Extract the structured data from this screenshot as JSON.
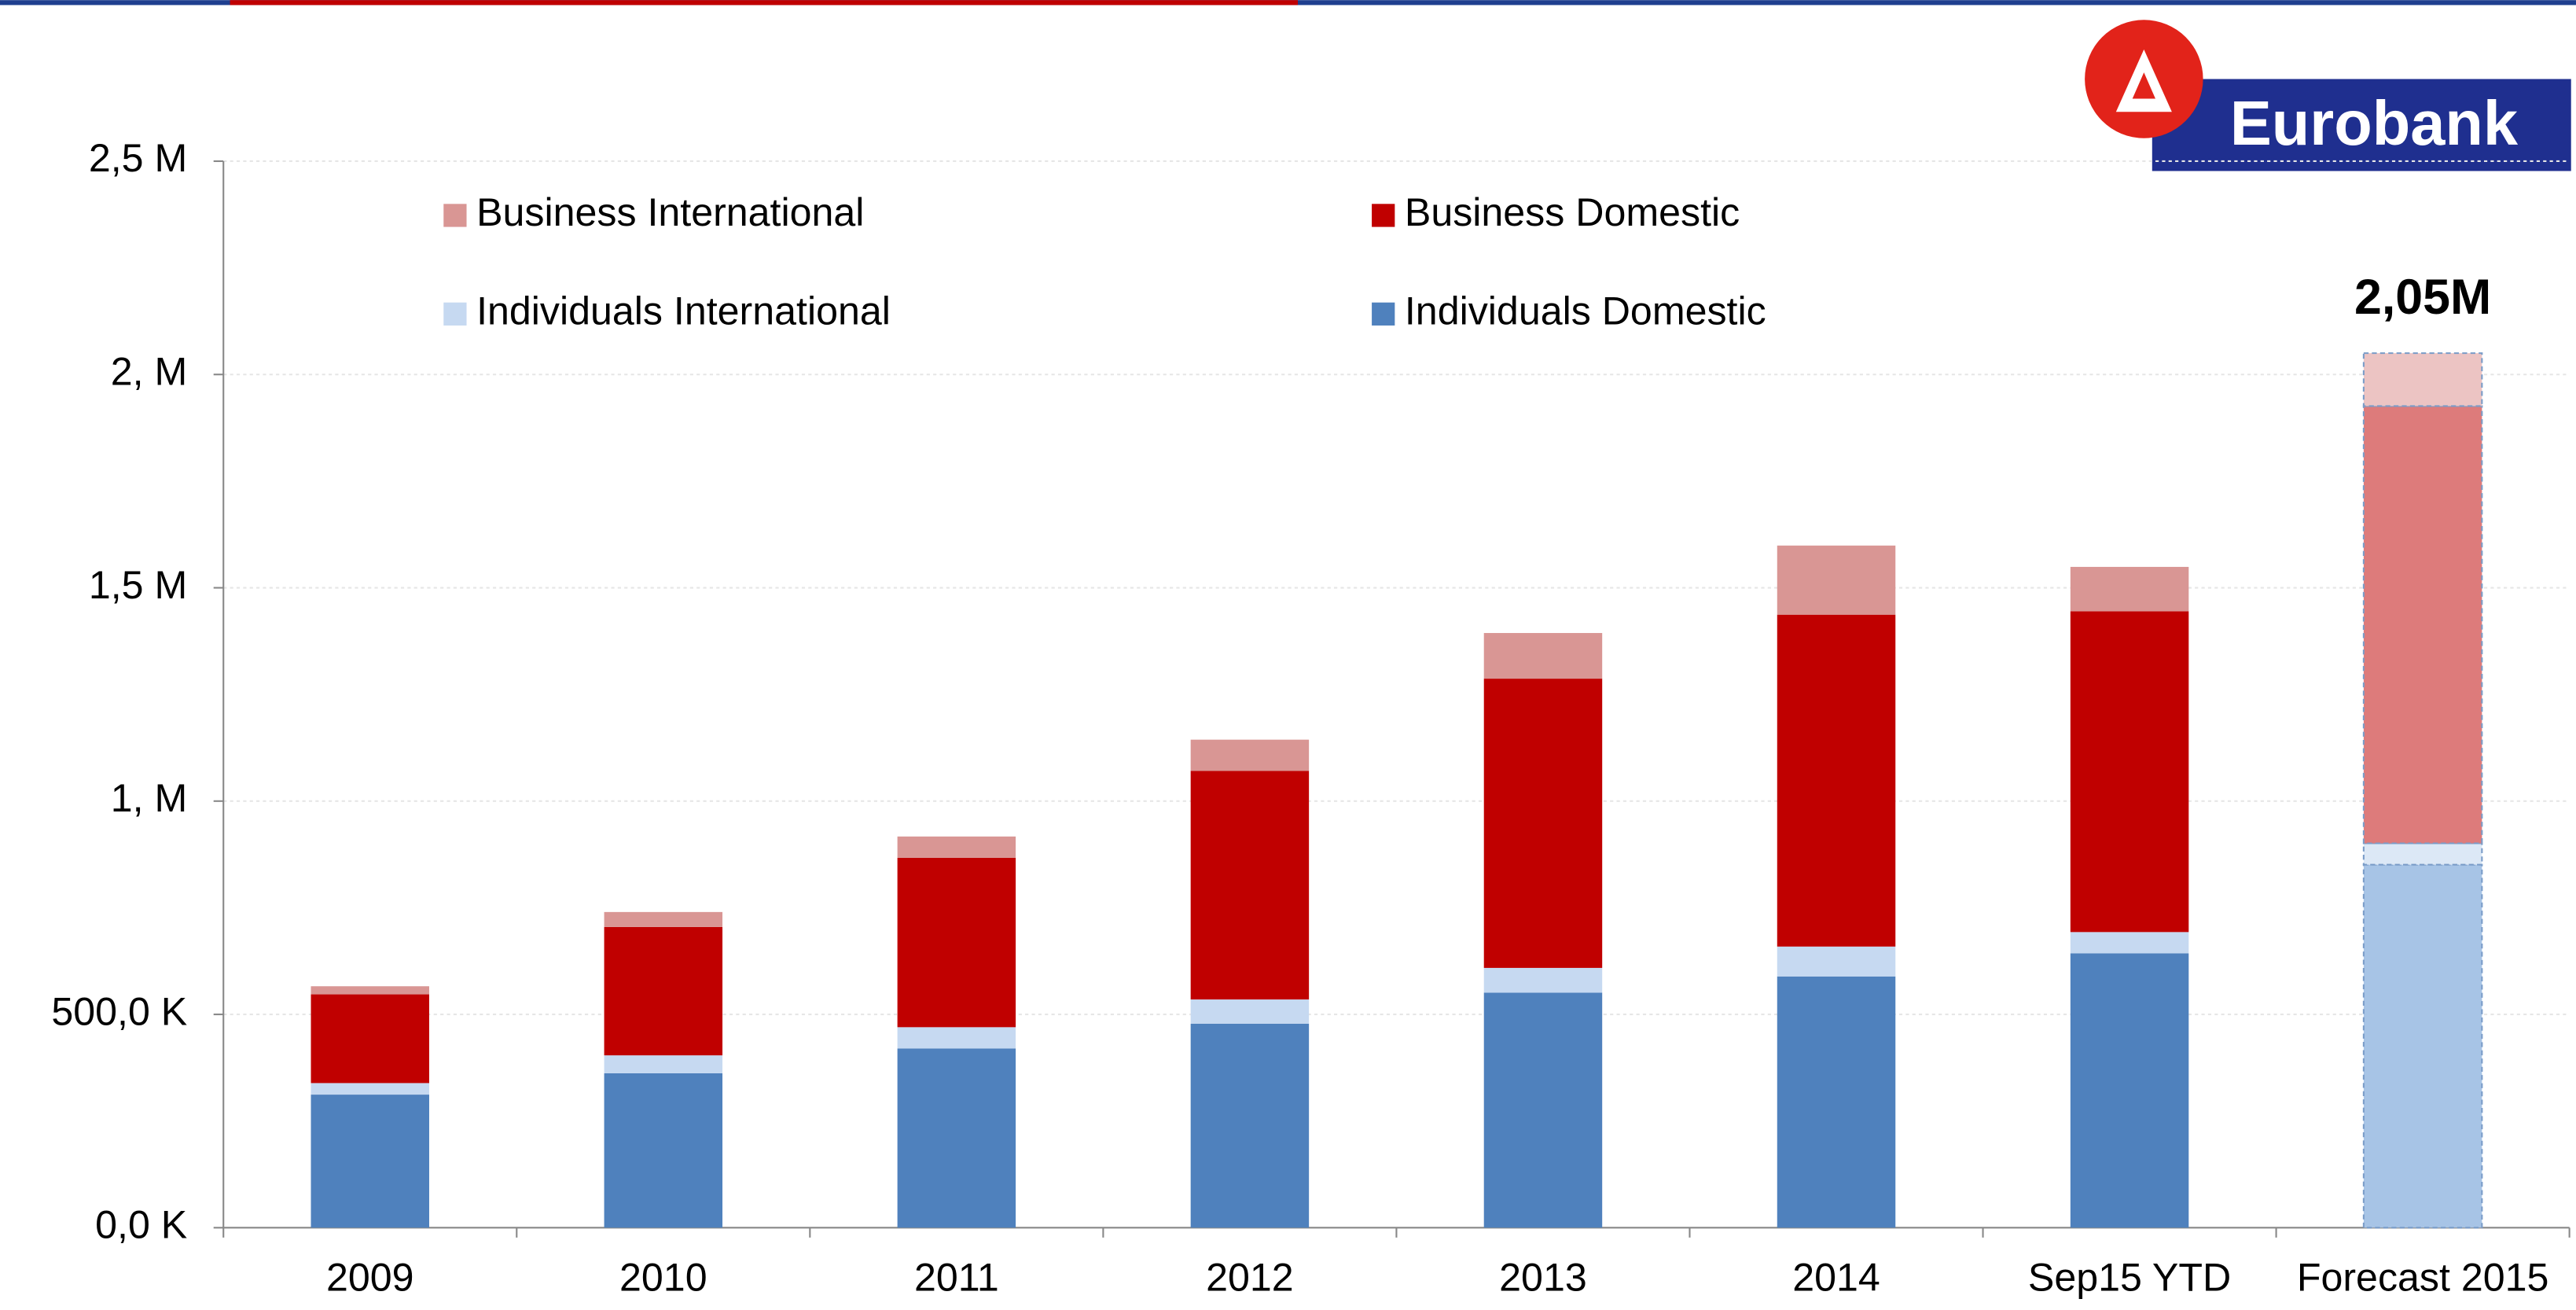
{
  "logo": "Eurobank",
  "chart_data": {
    "type": "stacked_bar",
    "categories": [
      "2009",
      "2010",
      "2011",
      "2012",
      "2013",
      "2014",
      "Sep15 YTD",
      "Forecast 2015"
    ],
    "series": [
      {
        "name": "Individuals Domestic",
        "color": "#4f81bd",
        "colors": [
          "#4f81bd",
          "#4f81bd",
          "#4f81bd",
          "#4f81bd",
          "#4f81bd",
          "#4f81bd",
          "#4f81bd",
          "#a7c4e6"
        ],
        "values": [
          312000,
          362000,
          420000,
          478000,
          551000,
          589000,
          643000,
          851000
        ]
      },
      {
        "name": "Individuals International",
        "color": "#c6d9f1",
        "colors": [
          "#c6d9f1",
          "#c6d9f1",
          "#c6d9f1",
          "#c6d9f1",
          "#c6d9f1",
          "#c6d9f1",
          "#c6d9f1",
          "#dce8f6"
        ],
        "values": [
          27000,
          42000,
          50000,
          57000,
          58000,
          70000,
          50000,
          50000
        ]
      },
      {
        "name": "Business Domestic",
        "color": "#c00000",
        "colors": [
          "#c00000",
          "#c00000",
          "#c00000",
          "#c00000",
          "#c00000",
          "#c00000",
          "#c00000",
          "#dd7b7b"
        ],
        "values": [
          208000,
          301000,
          397000,
          536000,
          678000,
          778000,
          752000,
          1025000
        ]
      },
      {
        "name": "Business International",
        "color": "#d99694",
        "colors": [
          "#d99694",
          "#d99694",
          "#d99694",
          "#d99694",
          "#d99694",
          "#d99694",
          "#d99694",
          "#ecc4c3"
        ],
        "values": [
          19000,
          35000,
          50000,
          73000,
          107000,
          162000,
          104000,
          124000
        ]
      }
    ],
    "annotation": {
      "text": "2,05M",
      "category": "Forecast 2015"
    },
    "ylim": [
      0,
      2500000
    ],
    "yticks": [
      {
        "value": 0,
        "label": "0,0 K"
      },
      {
        "value": 500000,
        "label": "500,0 K"
      },
      {
        "value": 1000000,
        "label": "1, M"
      },
      {
        "value": 1500000,
        "label": "1,5 M"
      },
      {
        "value": 2000000,
        "label": "2, M"
      },
      {
        "value": 2500000,
        "label": "2,5 M"
      }
    ],
    "grid": true,
    "legend": "top"
  }
}
